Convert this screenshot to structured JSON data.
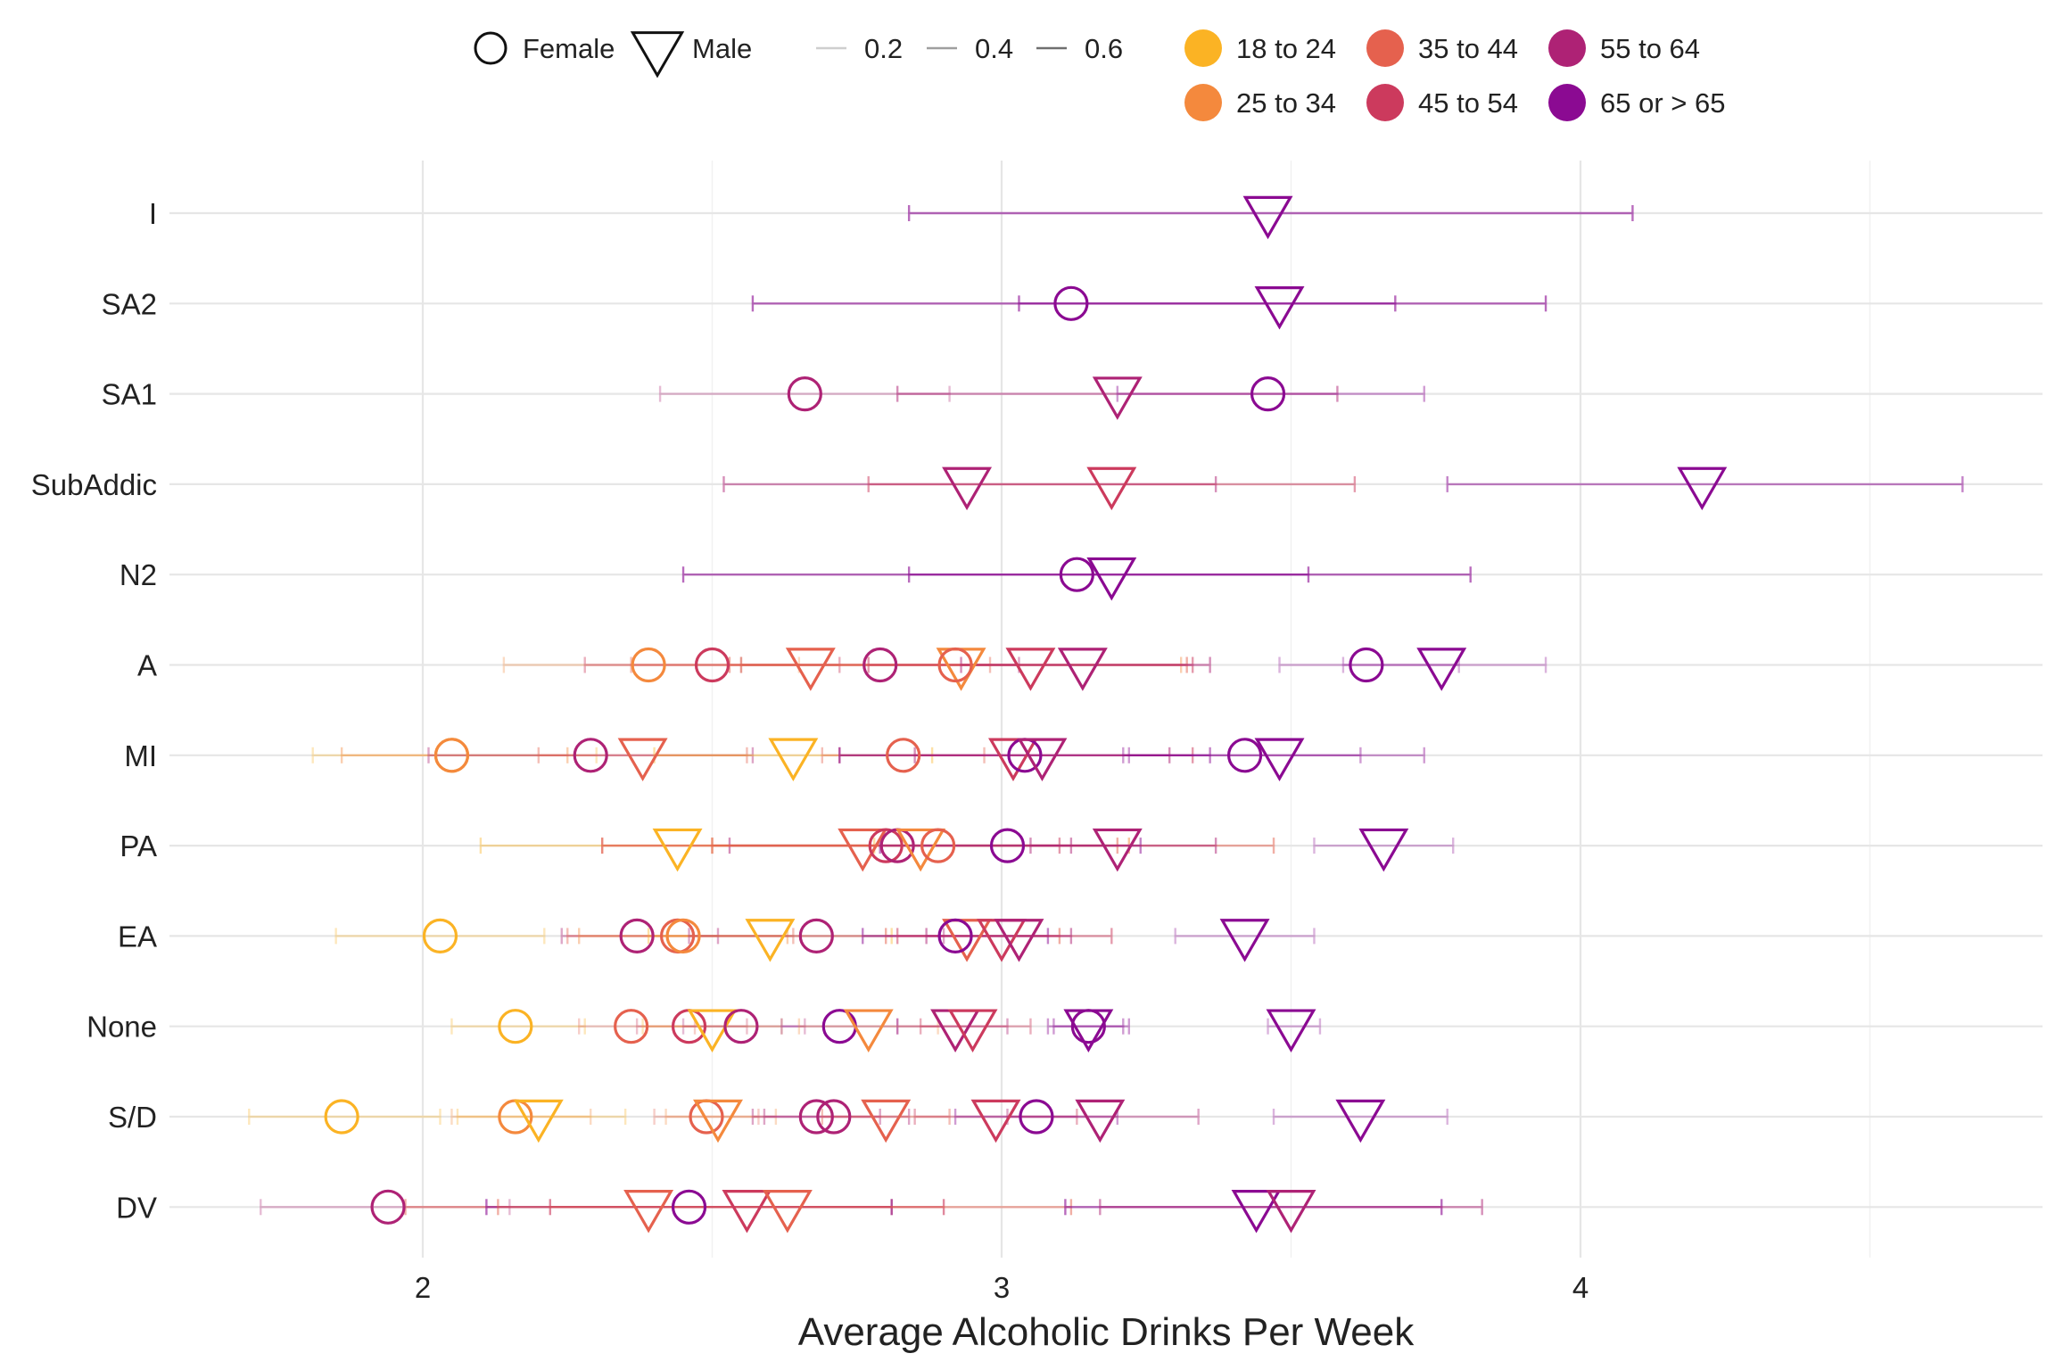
{
  "chart_data": {
    "type": "scatter",
    "xlabel": "Average Alcoholic Drinks Per Week",
    "ylabel": "",
    "xlim": [
      1.55,
      4.8
    ],
    "x_ticks": [
      "2",
      "3",
      "4"
    ],
    "x_tick_values": [
      2,
      3,
      4
    ],
    "categories": [
      "I",
      "SA2",
      "SA1",
      "SubAddic",
      "N2",
      "A",
      "MI",
      "PA",
      "EA",
      "None",
      "S/D",
      "DV"
    ],
    "grid": true,
    "legend_position": "top",
    "legend": {
      "shape": {
        "entries": [
          {
            "label": "Female",
            "shape": "circle"
          },
          {
            "label": "Male",
            "shape": "triangle"
          }
        ]
      },
      "alpha": {
        "entries": [
          {
            "label": "0.2",
            "value": 0.2
          },
          {
            "label": "0.4",
            "value": 0.4
          },
          {
            "label": "0.6",
            "value": 0.6
          }
        ]
      },
      "color": {
        "entries": [
          {
            "label": "18 to 24",
            "color": "#FBB324"
          },
          {
            "label": "25 to 34",
            "color": "#F4893D"
          },
          {
            "label": "35 to 44",
            "color": "#E5614E"
          },
          {
            "label": "45 to 54",
            "color": "#CC3A5D"
          },
          {
            "label": "55 to 64",
            "color": "#AE2275"
          },
          {
            "label": "65 or > 65",
            "color": "#8B0A92"
          }
        ]
      }
    },
    "points": [
      {
        "category": "I",
        "gender": "Male",
        "age": "65 or > 65",
        "x": 3.46,
        "lo": 2.84,
        "hi": 4.09,
        "alpha": 0.6
      },
      {
        "category": "SA2",
        "gender": "Female",
        "age": "65 or > 65",
        "x": 3.12,
        "lo": 2.57,
        "hi": 3.68,
        "alpha": 0.6
      },
      {
        "category": "SA2",
        "gender": "Male",
        "age": "65 or > 65",
        "x": 3.48,
        "lo": 3.03,
        "hi": 3.94,
        "alpha": 0.6
      },
      {
        "category": "SA1",
        "gender": "Female",
        "age": "55 to 64",
        "x": 2.66,
        "lo": 2.41,
        "hi": 2.91,
        "alpha": 0.3
      },
      {
        "category": "SA1",
        "gender": "Male",
        "age": "55 to 64",
        "x": 3.2,
        "lo": 2.82,
        "hi": 3.58,
        "alpha": 0.5
      },
      {
        "category": "SA1",
        "gender": "Female",
        "age": "65 or > 65",
        "x": 3.46,
        "lo": 3.2,
        "hi": 3.73,
        "alpha": 0.4
      },
      {
        "category": "SubAddic",
        "gender": "Male",
        "age": "55 to 64",
        "x": 2.94,
        "lo": 2.52,
        "hi": 3.37,
        "alpha": 0.5
      },
      {
        "category": "SubAddic",
        "gender": "Male",
        "age": "45 to 54",
        "x": 3.19,
        "lo": 2.77,
        "hi": 3.61,
        "alpha": 0.5
      },
      {
        "category": "SubAddic",
        "gender": "Male",
        "age": "65 or > 65",
        "x": 4.21,
        "lo": 3.77,
        "hi": 4.66,
        "alpha": 0.5
      },
      {
        "category": "N2",
        "gender": "Female",
        "age": "65 or > 65",
        "x": 3.13,
        "lo": 2.45,
        "hi": 3.81,
        "alpha": 0.6
      },
      {
        "category": "N2",
        "gender": "Male",
        "age": "65 or > 65",
        "x": 3.19,
        "lo": 2.84,
        "hi": 3.53,
        "alpha": 0.6
      },
      {
        "category": "A",
        "gender": "Female",
        "age": "25 to 34",
        "x": 2.39,
        "lo": 2.14,
        "hi": 2.65,
        "alpha": 0.3
      },
      {
        "category": "A",
        "gender": "Female",
        "age": "45 to 54",
        "x": 2.5,
        "lo": 2.28,
        "hi": 2.72,
        "alpha": 0.4
      },
      {
        "category": "A",
        "gender": "Male",
        "age": "35 to 44",
        "x": 2.67,
        "lo": 2.36,
        "hi": 2.98,
        "alpha": 0.4
      },
      {
        "category": "A",
        "gender": "Female",
        "age": "55 to 64",
        "x": 2.79,
        "lo": 2.55,
        "hi": 3.03,
        "alpha": 0.4
      },
      {
        "category": "A",
        "gender": "Male",
        "age": "25 to 34",
        "x": 2.93,
        "lo": 2.55,
        "hi": 3.31,
        "alpha": 0.4
      },
      {
        "category": "A",
        "gender": "Female",
        "age": "35 to 44",
        "x": 2.92,
        "lo": 2.53,
        "hi": 3.32,
        "alpha": 0.5
      },
      {
        "category": "A",
        "gender": "Male",
        "age": "45 to 54",
        "x": 3.05,
        "lo": 2.77,
        "hi": 3.33,
        "alpha": 0.5
      },
      {
        "category": "A",
        "gender": "Male",
        "age": "55 to 64",
        "x": 3.14,
        "lo": 2.93,
        "hi": 3.36,
        "alpha": 0.5
      },
      {
        "category": "A",
        "gender": "Female",
        "age": "65 or > 65",
        "x": 3.63,
        "lo": 3.48,
        "hi": 3.79,
        "alpha": 0.3
      },
      {
        "category": "A",
        "gender": "Male",
        "age": "65 or > 65",
        "x": 3.76,
        "lo": 3.59,
        "hi": 3.94,
        "alpha": 0.3
      },
      {
        "category": "MI",
        "gender": "Female",
        "age": "18 to 24",
        "x": 2.05,
        "lo": 1.81,
        "hi": 2.3,
        "alpha": 0.3
      },
      {
        "category": "MI",
        "gender": "Female",
        "age": "25 to 34",
        "x": 2.05,
        "lo": 1.86,
        "hi": 2.25,
        "alpha": 0.4
      },
      {
        "category": "MI",
        "gender": "Female",
        "age": "55 to 64",
        "x": 2.29,
        "lo": 2.01,
        "hi": 2.57,
        "alpha": 0.4
      },
      {
        "category": "MI",
        "gender": "Male",
        "age": "35 to 44",
        "x": 2.38,
        "lo": 2.2,
        "hi": 2.56,
        "alpha": 0.4
      },
      {
        "category": "MI",
        "gender": "Male",
        "age": "18 to 24",
        "x": 2.64,
        "lo": 2.4,
        "hi": 2.88,
        "alpha": 0.4
      },
      {
        "category": "MI",
        "gender": "Female",
        "age": "35 to 44",
        "x": 2.83,
        "lo": 2.69,
        "hi": 2.97,
        "alpha": 0.4
      },
      {
        "category": "MI",
        "gender": "Male",
        "age": "45 to 54",
        "x": 3.02,
        "lo": 2.72,
        "hi": 3.33,
        "alpha": 0.5
      },
      {
        "category": "MI",
        "gender": "Female",
        "age": "65 or > 65",
        "x": 3.04,
        "lo": 2.72,
        "hi": 3.36,
        "alpha": 0.5
      },
      {
        "category": "MI",
        "gender": "Male",
        "age": "55 to 64",
        "x": 3.07,
        "lo": 2.85,
        "hi": 3.29,
        "alpha": 0.5
      },
      {
        "category": "MI",
        "gender": "Female",
        "age": "65 or > 65",
        "x": 3.42,
        "lo": 3.21,
        "hi": 3.62,
        "alpha": 0.4
      },
      {
        "category": "MI",
        "gender": "Male",
        "age": "65 or > 65",
        "x": 3.48,
        "lo": 3.22,
        "hi": 3.73,
        "alpha": 0.4
      },
      {
        "category": "PA",
        "gender": "Male",
        "age": "18 to 24",
        "x": 2.44,
        "lo": 2.1,
        "hi": 2.78,
        "alpha": 0.4
      },
      {
        "category": "PA",
        "gender": "Male",
        "age": "35 to 44",
        "x": 2.76,
        "lo": 2.31,
        "hi": 3.2,
        "alpha": 0.5
      },
      {
        "category": "PA",
        "gender": "Female",
        "age": "45 to 54",
        "x": 2.8,
        "lo": 2.5,
        "hi": 3.1,
        "alpha": 0.5
      },
      {
        "category": "PA",
        "gender": "Female",
        "age": "55 to 64",
        "x": 2.82,
        "lo": 2.53,
        "hi": 3.12,
        "alpha": 0.5
      },
      {
        "category": "PA",
        "gender": "Male",
        "age": "25 to 34",
        "x": 2.86,
        "lo": 2.5,
        "hi": 3.22,
        "alpha": 0.5
      },
      {
        "category": "PA",
        "gender": "Female",
        "age": "35 to 44",
        "x": 2.89,
        "lo": 2.31,
        "hi": 3.47,
        "alpha": 0.5
      },
      {
        "category": "PA",
        "gender": "Female",
        "age": "65 or > 65",
        "x": 3.01,
        "lo": 2.79,
        "hi": 3.24,
        "alpha": 0.5
      },
      {
        "category": "PA",
        "gender": "Male",
        "age": "55 to 64",
        "x": 3.2,
        "lo": 3.05,
        "hi": 3.37,
        "alpha": 0.5
      },
      {
        "category": "PA",
        "gender": "Male",
        "age": "65 or > 65",
        "x": 3.66,
        "lo": 3.54,
        "hi": 3.78,
        "alpha": 0.3
      },
      {
        "category": "EA",
        "gender": "Female",
        "age": "18 to 24",
        "x": 2.03,
        "lo": 1.85,
        "hi": 2.21,
        "alpha": 0.3
      },
      {
        "category": "EA",
        "gender": "Female",
        "age": "55 to 64",
        "x": 2.37,
        "lo": 2.24,
        "hi": 2.51,
        "alpha": 0.4
      },
      {
        "category": "EA",
        "gender": "Female",
        "age": "35 to 44",
        "x": 2.44,
        "lo": 2.25,
        "hi": 2.64,
        "alpha": 0.4
      },
      {
        "category": "EA",
        "gender": "Female",
        "age": "25 to 34",
        "x": 2.45,
        "lo": 2.27,
        "hi": 2.63,
        "alpha": 0.4
      },
      {
        "category": "EA",
        "gender": "Male",
        "age": "18 to 24",
        "x": 2.6,
        "lo": 2.39,
        "hi": 2.81,
        "alpha": 0.4
      },
      {
        "category": "EA",
        "gender": "Female",
        "age": "55 to 64",
        "x": 2.68,
        "lo": 2.46,
        "hi": 2.9,
        "alpha": 0.4
      },
      {
        "category": "EA",
        "gender": "Male",
        "age": "35 to 44",
        "x": 2.94,
        "lo": 2.8,
        "hi": 3.1,
        "alpha": 0.5
      },
      {
        "category": "EA",
        "gender": "Female",
        "age": "65 or > 65",
        "x": 2.92,
        "lo": 2.76,
        "hi": 3.08,
        "alpha": 0.5
      },
      {
        "category": "EA",
        "gender": "Male",
        "age": "45 to 54",
        "x": 3.0,
        "lo": 2.82,
        "hi": 3.19,
        "alpha": 0.5
      },
      {
        "category": "EA",
        "gender": "Male",
        "age": "55 to 64",
        "x": 3.03,
        "lo": 2.87,
        "hi": 3.12,
        "alpha": 0.5
      },
      {
        "category": "EA",
        "gender": "Male",
        "age": "65 or > 65",
        "x": 3.42,
        "lo": 3.3,
        "hi": 3.54,
        "alpha": 0.3
      },
      {
        "category": "None",
        "gender": "Female",
        "age": "18 to 24",
        "x": 2.16,
        "lo": 2.05,
        "hi": 2.28,
        "alpha": 0.3
      },
      {
        "category": "None",
        "gender": "Female",
        "age": "35 to 44",
        "x": 2.36,
        "lo": 2.27,
        "hi": 2.47,
        "alpha": 0.3
      },
      {
        "category": "None",
        "gender": "Female",
        "age": "45 to 54",
        "x": 2.46,
        "lo": 2.37,
        "hi": 2.56,
        "alpha": 0.3
      },
      {
        "category": "None",
        "gender": "Male",
        "age": "18 to 24",
        "x": 2.5,
        "lo": 2.38,
        "hi": 2.62,
        "alpha": 0.3
      },
      {
        "category": "None",
        "gender": "Female",
        "age": "55 to 64",
        "x": 2.55,
        "lo": 2.45,
        "hi": 2.66,
        "alpha": 0.3
      },
      {
        "category": "None",
        "gender": "Female",
        "age": "65 or > 65",
        "x": 2.72,
        "lo": 2.62,
        "hi": 2.82,
        "alpha": 0.3
      },
      {
        "category": "None",
        "gender": "Male",
        "age": "25 to 34",
        "x": 2.77,
        "lo": 2.65,
        "hi": 2.89,
        "alpha": 0.3
      },
      {
        "category": "None",
        "gender": "Male",
        "age": "55 to 64",
        "x": 2.92,
        "lo": 2.82,
        "hi": 3.01,
        "alpha": 0.4
      },
      {
        "category": "None",
        "gender": "Male",
        "age": "45 to 54",
        "x": 2.95,
        "lo": 2.86,
        "hi": 3.05,
        "alpha": 0.4
      },
      {
        "category": "None",
        "gender": "Female",
        "age": "65 or > 65",
        "x": 3.15,
        "lo": 3.08,
        "hi": 3.21,
        "alpha": 0.4
      },
      {
        "category": "None",
        "gender": "Male",
        "age": "65 or > 65",
        "x": 3.15,
        "lo": 3.09,
        "hi": 3.22,
        "alpha": 0.4
      },
      {
        "category": "None",
        "gender": "Male",
        "age": "65 or > 65",
        "x": 3.5,
        "lo": 3.46,
        "hi": 3.55,
        "alpha": 0.3
      },
      {
        "category": "S/D",
        "gender": "Female",
        "age": "18 to 24",
        "x": 1.86,
        "lo": 1.7,
        "hi": 2.03,
        "alpha": 0.3
      },
      {
        "category": "S/D",
        "gender": "Female",
        "age": "25 to 34",
        "x": 2.16,
        "lo": 2.05,
        "hi": 2.29,
        "alpha": 0.3
      },
      {
        "category": "S/D",
        "gender": "Male",
        "age": "18 to 24",
        "x": 2.2,
        "lo": 2.06,
        "hi": 2.35,
        "alpha": 0.3
      },
      {
        "category": "S/D",
        "gender": "Female",
        "age": "35 to 44",
        "x": 2.49,
        "lo": 2.4,
        "hi": 2.58,
        "alpha": 0.3
      },
      {
        "category": "S/D",
        "gender": "Male",
        "age": "25 to 34",
        "x": 2.51,
        "lo": 2.42,
        "hi": 2.61,
        "alpha": 0.3
      },
      {
        "category": "S/D",
        "gender": "Female",
        "age": "55 to 64",
        "x": 2.68,
        "lo": 2.57,
        "hi": 2.79,
        "alpha": 0.4
      },
      {
        "category": "S/D",
        "gender": "Female",
        "age": "55 to 64",
        "x": 2.71,
        "lo": 2.59,
        "hi": 2.84,
        "alpha": 0.4
      },
      {
        "category": "S/D",
        "gender": "Male",
        "age": "35 to 44",
        "x": 2.8,
        "lo": 2.69,
        "hi": 2.91,
        "alpha": 0.4
      },
      {
        "category": "S/D",
        "gender": "Male",
        "age": "45 to 54",
        "x": 2.99,
        "lo": 2.85,
        "hi": 3.13,
        "alpha": 0.4
      },
      {
        "category": "S/D",
        "gender": "Female",
        "age": "65 or > 65",
        "x": 3.06,
        "lo": 2.92,
        "hi": 3.2,
        "alpha": 0.4
      },
      {
        "category": "S/D",
        "gender": "Male",
        "age": "55 to 64",
        "x": 3.17,
        "lo": 3.01,
        "hi": 3.34,
        "alpha": 0.4
      },
      {
        "category": "S/D",
        "gender": "Male",
        "age": "65 or > 65",
        "x": 3.62,
        "lo": 3.47,
        "hi": 3.77,
        "alpha": 0.3
      },
      {
        "category": "DV",
        "gender": "Female",
        "age": "55 to 64",
        "x": 1.94,
        "lo": 1.72,
        "hi": 2.15,
        "alpha": 0.3
      },
      {
        "category": "DV",
        "gender": "Male",
        "age": "35 to 44",
        "x": 2.39,
        "lo": 1.97,
        "hi": 2.81,
        "alpha": 0.5
      },
      {
        "category": "DV",
        "gender": "Female",
        "age": "65 or > 65",
        "x": 2.46,
        "lo": 2.11,
        "hi": 2.81,
        "alpha": 0.6
      },
      {
        "category": "DV",
        "gender": "Male",
        "age": "45 to 54",
        "x": 2.56,
        "lo": 2.22,
        "hi": 2.9,
        "alpha": 0.6
      },
      {
        "category": "DV",
        "gender": "Male",
        "age": "35 to 44",
        "x": 2.63,
        "lo": 2.13,
        "hi": 3.12,
        "alpha": 0.5
      },
      {
        "category": "DV",
        "gender": "Male",
        "age": "65 or > 65",
        "x": 3.44,
        "lo": 3.11,
        "hi": 3.76,
        "alpha": 0.6
      },
      {
        "category": "DV",
        "gender": "Male",
        "age": "55 to 64",
        "x": 3.5,
        "lo": 3.17,
        "hi": 3.83,
        "alpha": 0.5
      }
    ]
  }
}
